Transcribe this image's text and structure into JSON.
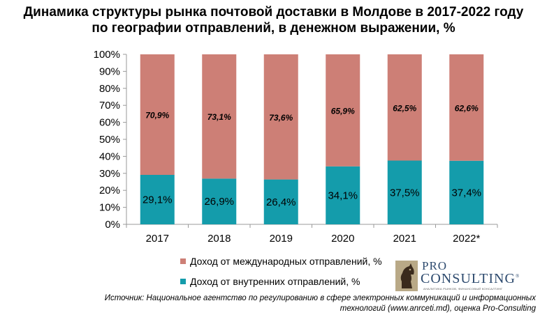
{
  "title_line1": "Динамика структуры рынка почтовой доставки в Молдове в 2017-2022 году",
  "title_line2": "по географии отправлений, в денежном выражении, %",
  "legend": {
    "international": "Доход от международных  отправлений,  %",
    "domestic": "Доход от внутренних  отправлений,  %"
  },
  "logo": {
    "pro": "PRO",
    "consulting": "CONSULTING",
    "registered": "®",
    "tagline": "АНАЛИТИКА РЫНКОВ, ФИНАНСОВЫЙ КОНСАЛТИНГ"
  },
  "source_line1": "Источник: Национальное агентство по регулированию в сфере электронных коммуникаций и информационных",
  "source_line2": "технологий (www.anrceti.md), оценка Pro-Consulting",
  "colors": {
    "international": "#cd7f76",
    "domestic": "#149cab",
    "axis": "#9a9a9a"
  },
  "chart_data": {
    "type": "bar",
    "stacked": true,
    "percent_stacked": true,
    "categories": [
      "2017",
      "2018",
      "2019",
      "2020",
      "2021",
      "2022*"
    ],
    "series": [
      {
        "name": "Доход от внутренних  отправлений,  %",
        "values": [
          29.1,
          26.9,
          26.4,
          34.1,
          37.5,
          37.4
        ],
        "labels": [
          "29,1%",
          "26,9%",
          "26,4%",
          "34,1%",
          "37,5%",
          "37,4%"
        ]
      },
      {
        "name": "Доход от международных  отправлений,  %",
        "values": [
          70.9,
          73.1,
          73.6,
          65.9,
          62.5,
          62.6
        ],
        "labels": [
          "70,9%",
          "73,1%",
          "73,6%",
          "65,9%",
          "62,5%",
          "62,6%"
        ]
      }
    ],
    "y_ticks": [
      "0%",
      "10%",
      "20%",
      "30%",
      "40%",
      "50%",
      "60%",
      "70%",
      "80%",
      "90%",
      "100%"
    ],
    "ylim": [
      0,
      100
    ],
    "grid": false,
    "legend_position": "bottom"
  }
}
